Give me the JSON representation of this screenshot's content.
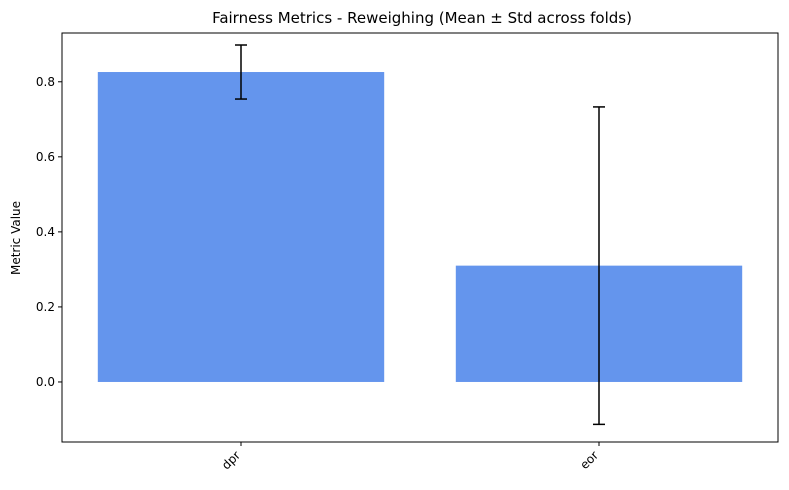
{
  "chart_data": {
    "type": "bar",
    "title": "Fairness Metrics - Reweighing (Mean ± Std across folds)",
    "xlabel": "",
    "ylabel": "Metric Value",
    "categories": [
      "dpr",
      "eor"
    ],
    "values": [
      0.826,
      0.31
    ],
    "errors": [
      0.072,
      0.423
    ],
    "ylim": [
      -0.16,
      0.93
    ],
    "yticks": [
      0.0,
      0.2,
      0.4,
      0.6,
      0.8
    ],
    "ytick_labels": [
      "0.0",
      "0.2",
      "0.4",
      "0.6",
      "0.8"
    ],
    "bar_color": "#6495ED",
    "error_color": "#000000",
    "grid": false,
    "xtick_rotation": 45
  }
}
